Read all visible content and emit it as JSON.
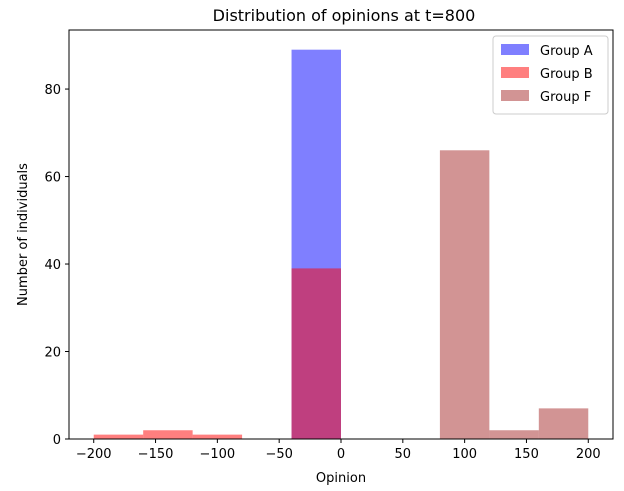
{
  "chart_data": {
    "type": "bar",
    "title": "Distribution of opinions at t=800",
    "xlabel": "Opinion",
    "ylabel": "Number of individuals",
    "xlim": [
      -220,
      220
    ],
    "ylim": [
      0,
      93.5
    ],
    "xticks": [
      -200,
      -150,
      -100,
      -50,
      0,
      50,
      100,
      150,
      200
    ],
    "xtick_labels": [
      "−200",
      "−150",
      "−100",
      "−50",
      "0",
      "50",
      "100",
      "150",
      "200"
    ],
    "yticks": [
      0,
      20,
      40,
      60,
      80
    ],
    "ytick_labels": [
      "0",
      "20",
      "40",
      "60",
      "80"
    ],
    "grid": false,
    "legend_position": "top-right",
    "series": [
      {
        "name": "Group A",
        "color": "#0000ff",
        "alpha": 0.5,
        "bins": [
          {
            "x0": -40,
            "x1": 0,
            "value": 89
          }
        ]
      },
      {
        "name": "Group B",
        "color": "#ff0000",
        "alpha": 0.5,
        "bins": [
          {
            "x0": -200,
            "x1": -160,
            "value": 1
          },
          {
            "x0": -160,
            "x1": -120,
            "value": 2
          },
          {
            "x0": -120,
            "x1": -80,
            "value": 1
          },
          {
            "x0": -40,
            "x1": 0,
            "value": 39
          }
        ]
      },
      {
        "name": "Group F",
        "color": "#a52a2a",
        "alpha": 0.5,
        "bins": [
          {
            "x0": 80,
            "x1": 120,
            "value": 66
          },
          {
            "x0": 120,
            "x1": 160,
            "value": 2
          },
          {
            "x0": 160,
            "x1": 200,
            "value": 7
          }
        ]
      }
    ]
  }
}
